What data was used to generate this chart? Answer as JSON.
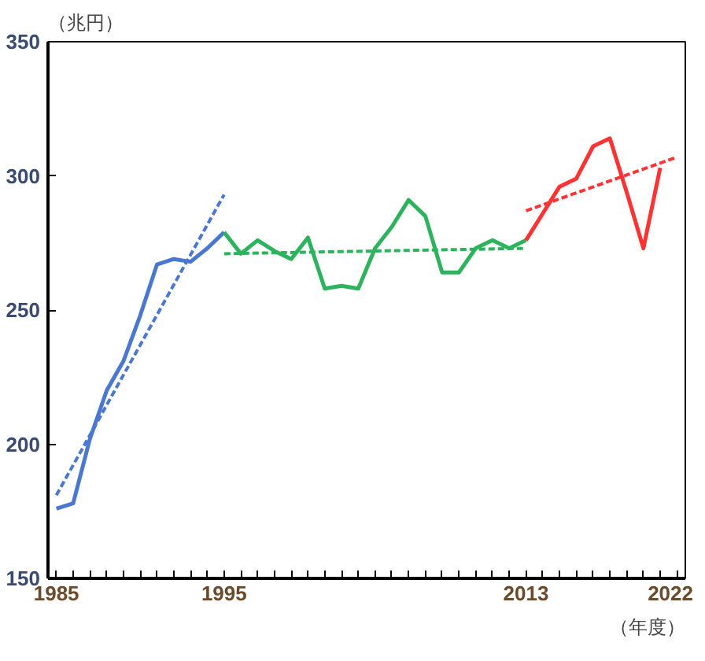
{
  "chart_data": {
    "type": "line",
    "ylabel": "（兆円）",
    "xlabel": "（年度）",
    "xlim": [
      1984.5,
      2022.5
    ],
    "ylim": [
      150,
      350
    ],
    "xticks": [
      1985,
      {
        "value": 1986,
        "label": null
      },
      {
        "value": 1987,
        "label": null
      },
      {
        "value": 1988,
        "label": null
      },
      {
        "value": 1989,
        "label": null
      },
      {
        "value": 1990,
        "label": null
      },
      {
        "value": 1991,
        "label": null
      },
      {
        "value": 1992,
        "label": null
      },
      {
        "value": 1993,
        "label": null
      },
      {
        "value": 1994,
        "label": null
      },
      1995,
      {
        "value": 1996,
        "label": null
      },
      {
        "value": 1997,
        "label": null
      },
      {
        "value": 1998,
        "label": null
      },
      {
        "value": 1999,
        "label": null
      },
      {
        "value": 2000,
        "label": null
      },
      {
        "value": 2001,
        "label": null
      },
      {
        "value": 2002,
        "label": null
      },
      {
        "value": 2003,
        "label": null
      },
      {
        "value": 2004,
        "label": null
      },
      {
        "value": 2005,
        "label": null
      },
      {
        "value": 2006,
        "label": null
      },
      {
        "value": 2007,
        "label": null
      },
      {
        "value": 2008,
        "label": null
      },
      {
        "value": 2009,
        "label": null
      },
      {
        "value": 2010,
        "label": null
      },
      {
        "value": 2011,
        "label": null
      },
      {
        "value": 2012,
        "label": null
      },
      2013,
      {
        "value": 2014,
        "label": null
      },
      {
        "value": 2015,
        "label": null
      },
      {
        "value": 2016,
        "label": null
      },
      {
        "value": 2017,
        "label": null
      },
      {
        "value": 2018,
        "label": null
      },
      {
        "value": 2019,
        "label": null
      },
      {
        "value": 2020,
        "label": null
      },
      {
        "value": 2021,
        "label": null
      },
      2022
    ],
    "yticks": [
      150,
      200,
      250,
      300,
      350
    ],
    "grid": false,
    "series": [
      {
        "color": "#4a78d0",
        "x": [
          1985,
          1986,
          1987,
          1988,
          1989,
          1990,
          1991,
          1992,
          1993,
          1994,
          1995
        ],
        "values": [
          176,
          178,
          202,
          220,
          231,
          248,
          267,
          269,
          268,
          273,
          279
        ]
      },
      {
        "color": "#4a78d0",
        "line_style": "dashed",
        "x": [
          1985,
          1995
        ],
        "values": [
          181,
          293
        ]
      },
      {
        "color": "#2db35d",
        "x": [
          1995,
          1996,
          1997,
          1998,
          1999,
          2000,
          2001,
          2002,
          2003,
          2004,
          2005,
          2006,
          2007,
          2008,
          2009,
          2010,
          2011,
          2012,
          2013
        ],
        "values": [
          279,
          271,
          276,
          272,
          269,
          277,
          258,
          259,
          258,
          273,
          281,
          291,
          285,
          264,
          264,
          273,
          276,
          273,
          276
        ]
      },
      {
        "color": "#2db35d",
        "line_style": "dashed",
        "x": [
          1995,
          2013
        ],
        "values": [
          271,
          273
        ]
      },
      {
        "color": "#ff3333",
        "x": [
          2013,
          2014,
          2015,
          2016,
          2017,
          2018,
          2019,
          2020,
          2021
        ],
        "values": [
          276,
          286,
          296,
          299,
          311,
          314,
          294,
          273,
          303
        ]
      },
      {
        "color": "#ff3333",
        "line_style": "dashed",
        "x": [
          2013,
          2022
        ],
        "values": [
          287,
          307
        ]
      }
    ]
  }
}
